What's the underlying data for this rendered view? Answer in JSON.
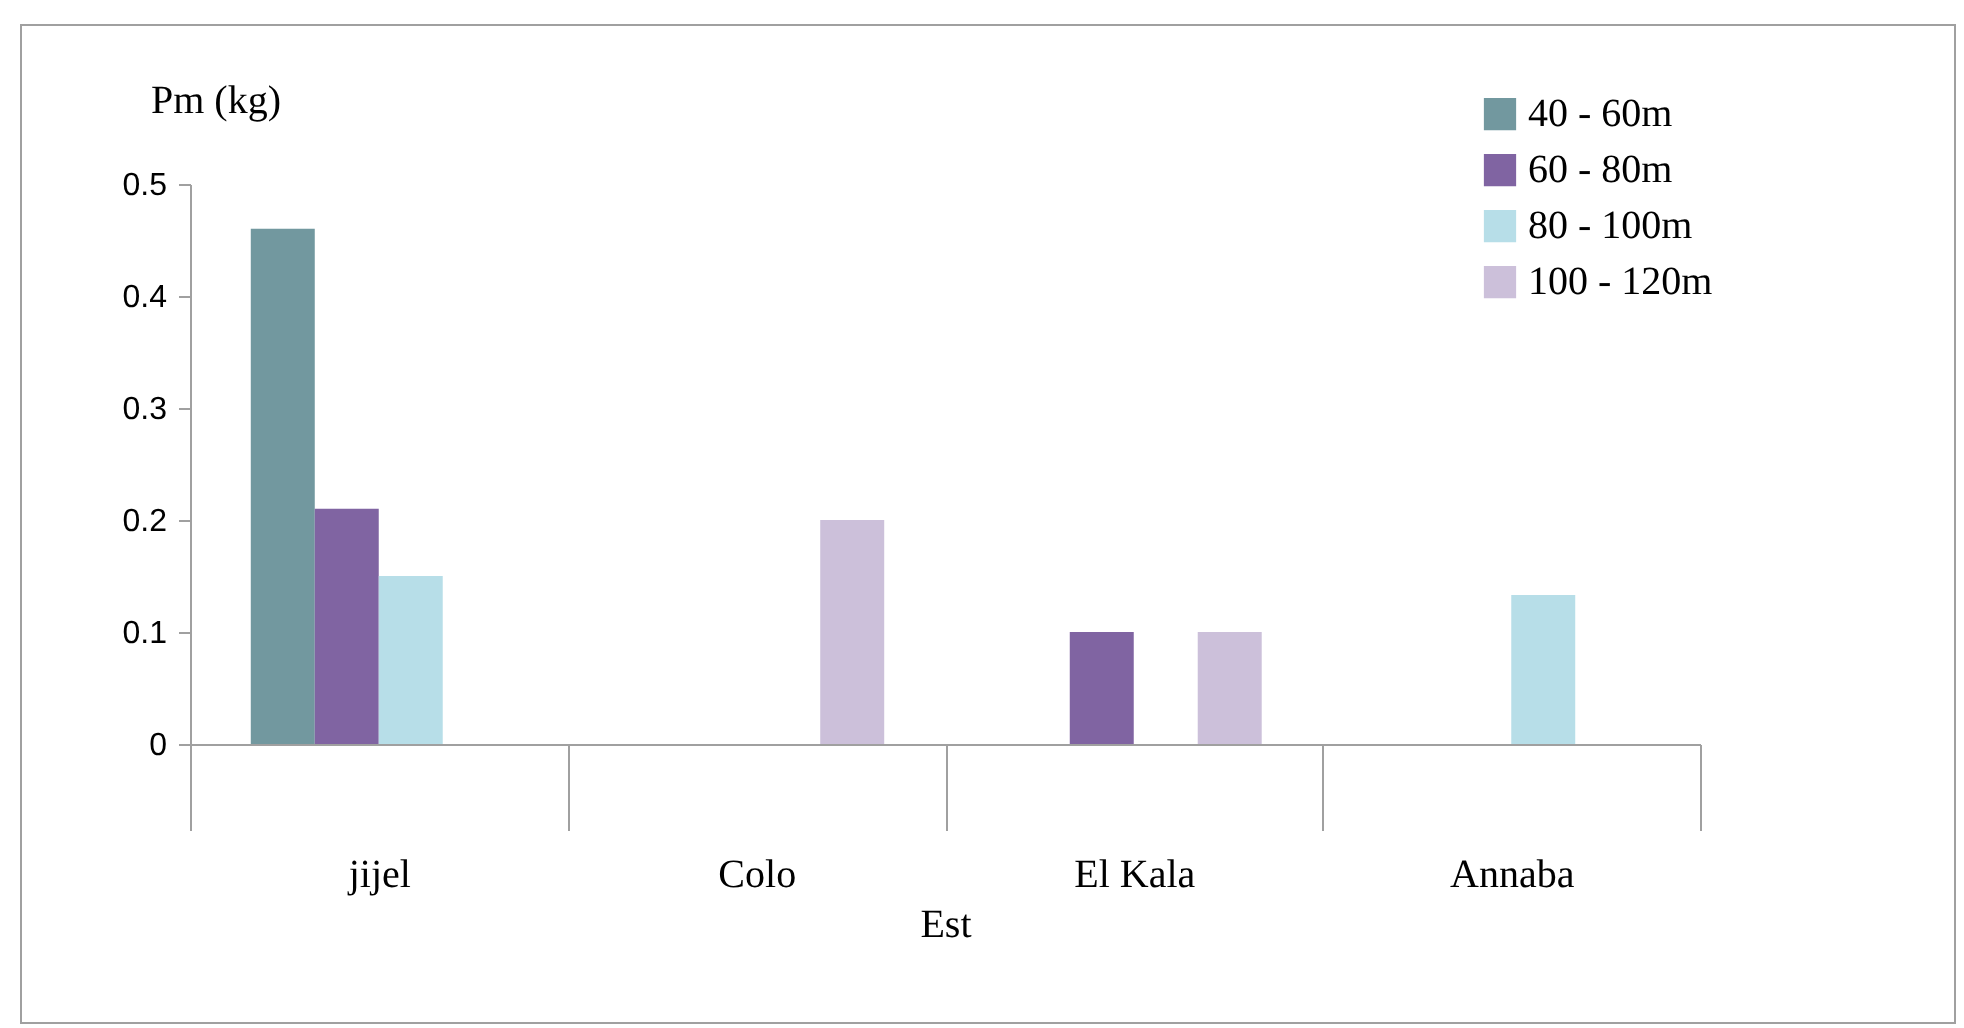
{
  "chart_data": {
    "type": "bar",
    "ylabel": "Pm (kg)",
    "xlabel": "Est",
    "categories": [
      "jijel",
      "Colo",
      "El Kala",
      "Annaba"
    ],
    "series": [
      {
        "name": "40 - 60m",
        "color": "#72989f",
        "values": [
          0.46,
          null,
          null,
          null
        ]
      },
      {
        "name": "60 - 80m",
        "color": "#8064a2",
        "values": [
          0.21,
          null,
          0.1,
          null
        ]
      },
      {
        "name": "80 - 100m",
        "color": "#b7dee8",
        "values": [
          0.15,
          null,
          null,
          0.133
        ]
      },
      {
        "name": "100 - 120m",
        "color": "#ccc0da",
        "values": [
          null,
          0.2,
          0.1,
          null
        ]
      }
    ],
    "ylim": [
      0,
      0.5
    ],
    "yticks": [
      0,
      0.1,
      0.2,
      0.3,
      0.4,
      0.5
    ],
    "grid": false,
    "legend": "top right"
  }
}
